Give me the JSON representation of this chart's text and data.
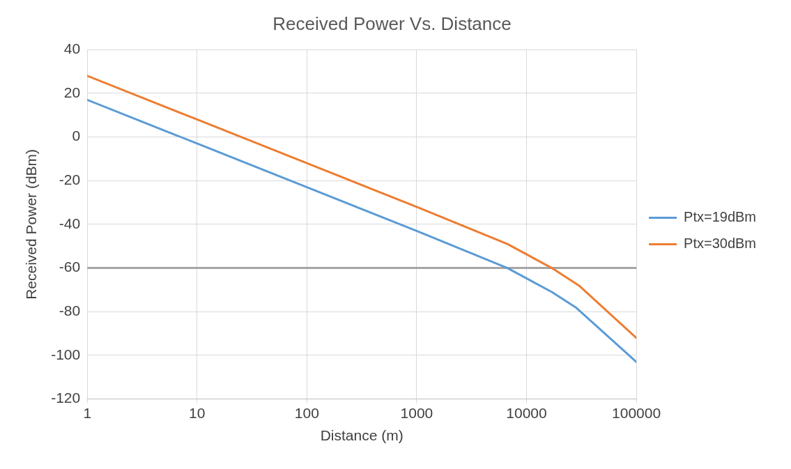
{
  "chart_data": {
    "type": "line",
    "title": "Received Power Vs. Distance",
    "xlabel": "Distance (m)",
    "ylabel": "Received Power (dBm)",
    "series": [
      {
        "name": "Ptx=19dBm",
        "color": "#5b9bd5",
        "x": [
          1,
          10,
          100,
          1000,
          6700,
          17000,
          28000,
          100000
        ],
        "values": [
          17,
          -3,
          -23,
          -43,
          -60,
          -71,
          -78,
          -103
        ]
      },
      {
        "name": "Ptx=30dBm",
        "color": "#ed7d31",
        "x": [
          1,
          10,
          100,
          1000,
          6700,
          17000,
          30000,
          100000
        ],
        "values": [
          28,
          8,
          -12,
          -32,
          -49,
          -60,
          -68,
          -92
        ]
      }
    ],
    "log": "x",
    "xlim": [
      1,
      100000
    ],
    "xticks": [
      1,
      10,
      100,
      1000,
      10000,
      100000
    ],
    "ylim": [
      -120,
      40
    ],
    "yticks": [
      -120,
      -100,
      -80,
      -60,
      -40,
      -20,
      0,
      20,
      40
    ],
    "ref_lines": [
      {
        "axis": "y",
        "value": -60,
        "color": "#a5a5a5"
      }
    ],
    "grid": true,
    "legend": "right",
    "marker": "none",
    "line_style": "solid"
  }
}
